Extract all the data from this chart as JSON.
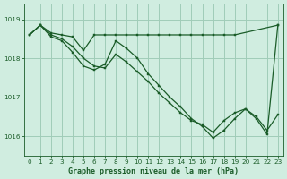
{
  "bg_color": "#d0ede0",
  "grid_color": "#a0ccb8",
  "line_color": "#1a5c28",
  "marker_color": "#1a5c28",
  "xlabel": "Graphe pression niveau de la mer (hPa)",
  "xlabel_color": "#1a5c28",
  "tick_color": "#1a5c28",
  "ylim": [
    1015.5,
    1019.4
  ],
  "xlim": [
    -0.5,
    23.5
  ],
  "yticks": [
    1016,
    1017,
    1018,
    1019
  ],
  "xtick_labels": [
    "0",
    "1",
    "2",
    "3",
    "4",
    "5",
    "6",
    "7",
    "8",
    "9",
    "10",
    "11",
    "12",
    "13",
    "14",
    "15",
    "16",
    "17",
    "18",
    "19",
    "20",
    "21",
    "22",
    "23"
  ],
  "series": [
    {
      "x": [
        0,
        1,
        2,
        3,
        4,
        5,
        6,
        7,
        8,
        9,
        10,
        11,
        12,
        13,
        14,
        15,
        16,
        17,
        18,
        19,
        23
      ],
      "y": [
        1018.6,
        1018.85,
        1018.65,
        1018.6,
        1018.55,
        1018.2,
        1018.6,
        1018.6,
        1018.6,
        1018.6,
        1018.6,
        1018.6,
        1018.6,
        1018.6,
        1018.6,
        1018.6,
        1018.6,
        1018.6,
        1018.6,
        1018.6,
        1018.85
      ]
    },
    {
      "x": [
        0,
        1,
        2,
        3,
        4,
        5,
        6,
        7,
        8,
        9,
        10,
        11,
        12,
        13,
        14,
        15,
        16,
        17,
        18,
        19,
        20,
        21,
        22,
        23
      ],
      "y": [
        1018.6,
        1018.85,
        1018.6,
        1018.5,
        1018.3,
        1018.0,
        1017.8,
        1017.75,
        1018.1,
        1017.9,
        1017.65,
        1017.4,
        1017.1,
        1016.85,
        1016.6,
        1016.4,
        1016.3,
        1016.1,
        1016.4,
        1016.6,
        1016.7,
        1016.5,
        1016.15,
        1016.55
      ]
    },
    {
      "x": [
        0,
        1,
        2,
        3,
        4,
        5,
        6,
        7,
        8,
        9,
        10,
        11,
        12,
        13,
        14,
        15,
        16,
        17,
        18,
        19,
        20,
        21,
        22,
        23
      ],
      "y": [
        1018.6,
        1018.85,
        1018.55,
        1018.45,
        1018.15,
        1017.8,
        1017.7,
        1017.85,
        1018.45,
        1018.25,
        1018.0,
        1017.6,
        1017.3,
        1017.0,
        1016.75,
        1016.45,
        1016.25,
        1015.95,
        1016.15,
        1016.45,
        1016.7,
        1016.45,
        1016.05,
        1018.85
      ]
    }
  ]
}
